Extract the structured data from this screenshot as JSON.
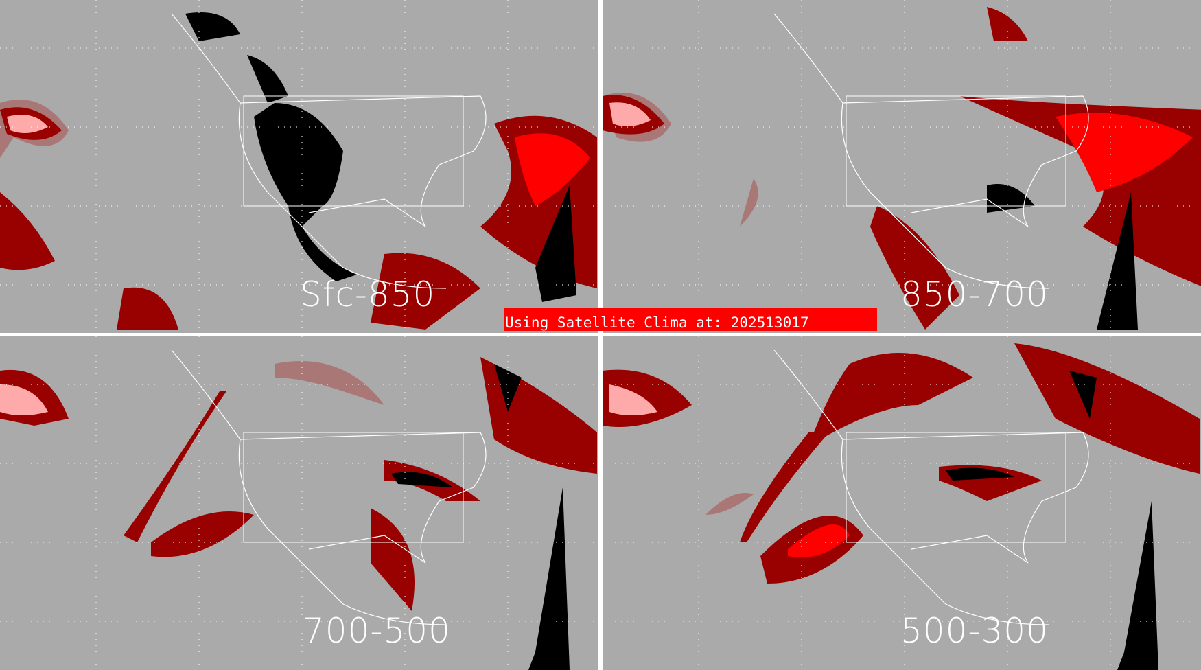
{
  "panels": [
    {
      "label": "Sfc-850"
    },
    {
      "label": "850-700"
    },
    {
      "label": "700-500"
    },
    {
      "label": "500-300"
    }
  ],
  "banner": {
    "text": "Using Satellite Clima at: 202513017"
  },
  "colors": {
    "background": "#aaaaaa",
    "darkred": "#990000",
    "red": "#ff0000",
    "pink": "#ffaaaa",
    "mauve": "#aa7777",
    "black": "#000000",
    "coast": "#ffffff"
  }
}
